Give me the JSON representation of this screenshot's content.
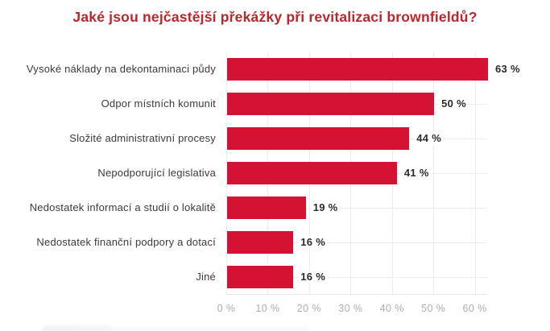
{
  "chart_data": {
    "type": "bar",
    "orientation": "horizontal",
    "title": "Jaké jsou nejčastější překážky při revitalizaci brownfieldů?",
    "categories": [
      "Vysoké náklady na dekontaminaci půdy",
      "Odpor místních komunit",
      "Složité administrativní procesy",
      "Nepodporující legislativa",
      "Nedostatek informací a studií o lokalitě",
      "Nedostatek finanční podpory a dotací",
      "Jiné"
    ],
    "values": [
      63,
      50,
      44,
      41,
      19,
      16,
      16
    ],
    "value_labels": [
      "63 %",
      "50 %",
      "44 %",
      "41 %",
      "19 %",
      "16 %",
      "16 %"
    ],
    "x_ticks": [
      0,
      10,
      20,
      30,
      40,
      50,
      60
    ],
    "x_tick_labels": [
      "0 %",
      "10 %",
      "20 %",
      "30 %",
      "40 %",
      "50 %",
      "60 %"
    ],
    "xlim": [
      0,
      63
    ],
    "grid": true,
    "legend": "none",
    "xlabel": "",
    "ylabel": "",
    "colors": {
      "bar": "#d41233",
      "title": "#b9272c",
      "category_text": "#3a3a3a",
      "value_text": "#2b2b2b",
      "tick_text": "#adadad",
      "gridline": "#ececec"
    }
  }
}
